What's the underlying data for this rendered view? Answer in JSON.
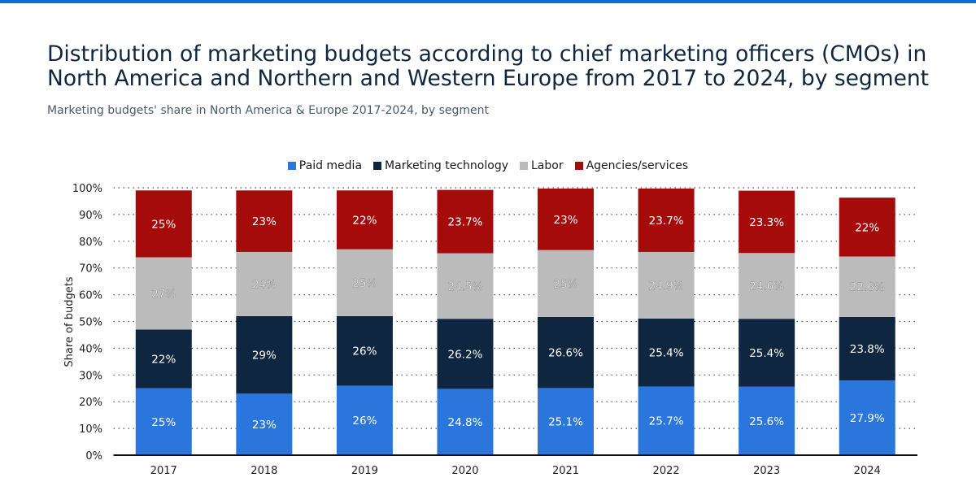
{
  "title": "Distribution of marketing budgets according to chief marketing officers (CMOs) in North America and Northern and Western Europe from 2017 to 2024, by segment",
  "subtitle": "Marketing budgets' share in North America & Europe 2017-2024, by segment",
  "chart_data": {
    "type": "bar",
    "stacked": true,
    "categories": [
      "2017",
      "2018",
      "2019",
      "2020",
      "2021",
      "2022",
      "2023",
      "2024"
    ],
    "series": [
      {
        "name": "Paid media",
        "color": "#2a76dd",
        "values": [
          25,
          23,
          26,
          24.8,
          25.1,
          25.7,
          25.6,
          27.9
        ],
        "labels": [
          "25%",
          "23%",
          "26%",
          "24.8%",
          "25.1%",
          "25.7%",
          "25.6%",
          "27.9%"
        ]
      },
      {
        "name": "Marketing technology",
        "color": "#0f2640",
        "values": [
          22,
          29,
          26,
          26.2,
          26.6,
          25.4,
          25.4,
          23.8
        ],
        "labels": [
          "22%",
          "29%",
          "26%",
          "26.2%",
          "26.6%",
          "25.4%",
          "25.4%",
          "23.8%"
        ]
      },
      {
        "name": "Labor",
        "color": "#bbbbbb",
        "values": [
          27,
          24,
          25,
          24.5,
          25,
          24.9,
          24.6,
          22.6
        ],
        "labels": [
          "27%",
          "24%",
          "25%",
          "24.5%",
          "25%",
          "24.9%",
          "24.6%",
          "22.6%"
        ]
      },
      {
        "name": "Agencies/services",
        "color": "#a50b0b",
        "values": [
          25,
          23,
          22,
          23.7,
          23,
          23.7,
          23.3,
          22
        ],
        "labels": [
          "25%",
          "23%",
          "22%",
          "23.7%",
          "23%",
          "23.7%",
          "23.3%",
          "22%"
        ]
      }
    ],
    "ylabel": "Share of budgets",
    "ylim": [
      0,
      100
    ],
    "yticks": [
      "0%",
      "10%",
      "20%",
      "30%",
      "40%",
      "50%",
      "60%",
      "70%",
      "80%",
      "90%",
      "100%"
    ],
    "grid": true,
    "legend_position": "top"
  }
}
